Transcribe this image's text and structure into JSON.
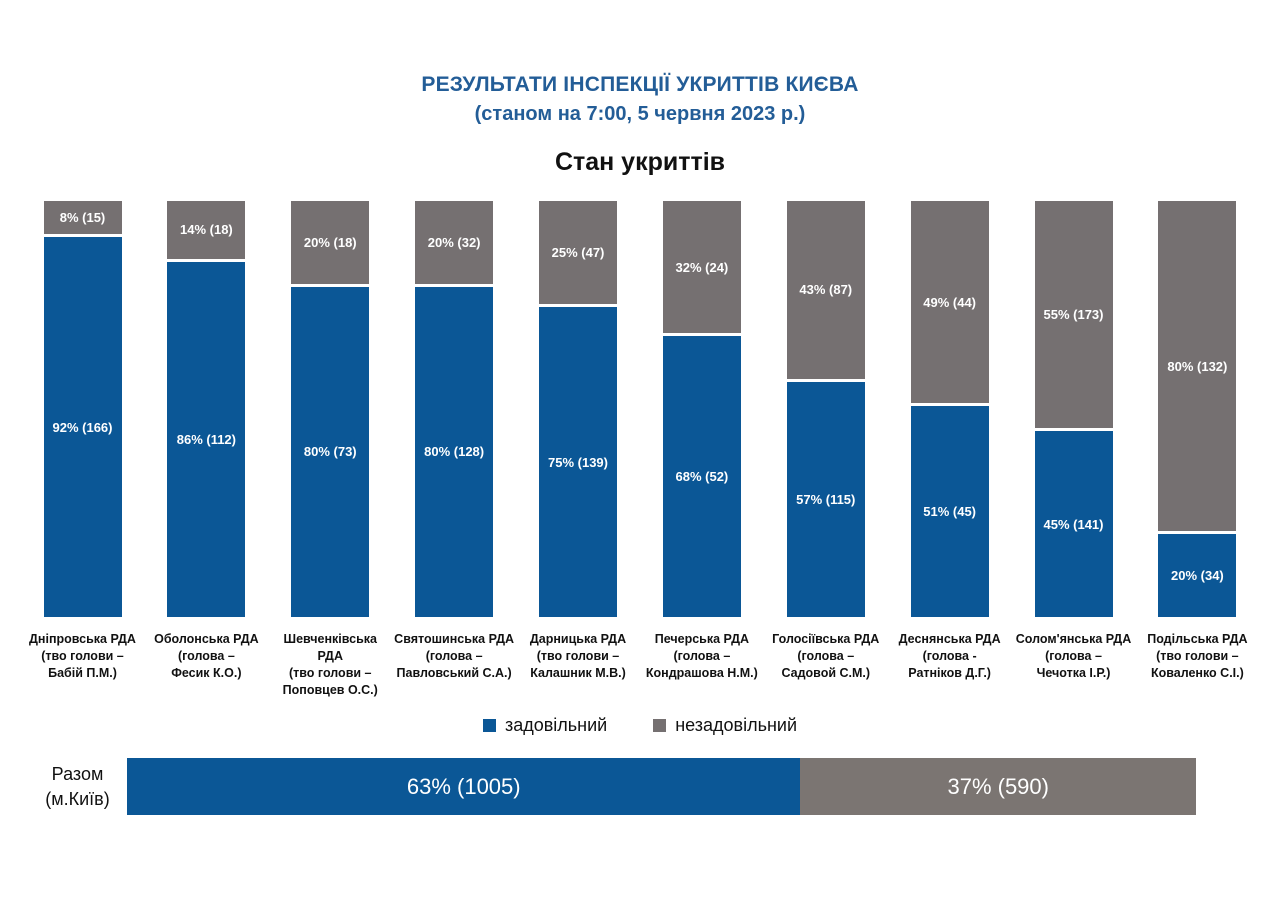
{
  "header": {
    "title": "РЕЗУЛЬТАТИ ІНСПЕКЦІЇ УКРИТТІВ КИЄВА",
    "subtitle": "(станом на 7:00, 5 червня 2023 р.)"
  },
  "chart_title": "Стан укриттів",
  "colors": {
    "satisfactory_blue": "#0b5796",
    "unsatisfactory_gray": "#757071",
    "title_blue": "#235d97",
    "total_gray": "#7b7572"
  },
  "legend": {
    "satisfactory": "задовільний",
    "unsatisfactory": "незадовільний"
  },
  "chart_data": {
    "type": "bar",
    "stacked": true,
    "orientation": "vertical",
    "title": "Стан укриттів",
    "ylim": [
      0,
      100
    ],
    "grid": false,
    "legend_position": "bottom",
    "categories": [
      "Дніпровська РДА (тво голови – Бабій П.М.)",
      "Оболонська РДА (голова – Фесик К.О.)",
      "Шевченківська РДА (тво голови – Поповцев О.С.)",
      "Святошинська РДА (голова – Павловський С.А.)",
      "Дарницька РДА (тво голови – Калашник М.В.)",
      "Печерська РДА (голова – Кондрашова Н.М.)",
      "Голосіївська РДА (голова – Садовой С.М.)",
      "Деснянська РДА (голова - Ратніков Д.Г.)",
      "Солом'янська РДА (голова – Чечотка І.Р.)",
      "Подільська РДА (тво голови – Коваленко С.І.)"
    ],
    "series": [
      {
        "name": "задовільний",
        "color": "#0b5796",
        "values_pct": [
          92,
          86,
          80,
          80,
          75,
          68,
          57,
          51,
          45,
          20
        ],
        "counts": [
          166,
          112,
          73,
          128,
          139,
          52,
          115,
          45,
          141,
          34
        ]
      },
      {
        "name": "незадовільний",
        "color": "#757071",
        "values_pct": [
          8,
          14,
          20,
          20,
          25,
          32,
          43,
          49,
          55,
          80
        ],
        "counts": [
          15,
          18,
          18,
          32,
          47,
          24,
          87,
          44,
          173,
          132
        ]
      }
    ],
    "total": {
      "category": "Разом (м.Київ)",
      "satisfactory_pct": 63,
      "satisfactory_count": 1005,
      "unsatisfactory_pct": 37,
      "unsatisfactory_count": 590
    }
  },
  "bars": [
    {
      "line1": "Дніпровська РДА",
      "line2": "(тво голови –",
      "line3": "Бабій П.М.)",
      "unsat_pct": 8,
      "unsat_label": "8% (15)",
      "sat_pct": 92,
      "sat_label": "92% (166)"
    },
    {
      "line1": "Оболонська РДА",
      "line2": "(голова –",
      "line3": "Фесик К.О.)",
      "unsat_pct": 14,
      "unsat_label": "14% (18)",
      "sat_pct": 86,
      "sat_label": "86% (112)"
    },
    {
      "line1": "Шевченківська РДА",
      "line2": "(тво голови –",
      "line3": "Поповцев О.С.)",
      "unsat_pct": 20,
      "unsat_label": "20% (18)",
      "sat_pct": 80,
      "sat_label": "80% (73)"
    },
    {
      "line1": "Святошинська РДА",
      "line2": "(голова –",
      "line3": "Павловський С.А.)",
      "unsat_pct": 20,
      "unsat_label": "20% (32)",
      "sat_pct": 80,
      "sat_label": "80% (128)"
    },
    {
      "line1": "Дарницька РДА",
      "line2": "(тво голови –",
      "line3": "Калашник М.В.)",
      "unsat_pct": 25,
      "unsat_label": "25% (47)",
      "sat_pct": 75,
      "sat_label": "75% (139)"
    },
    {
      "line1": "Печерська РДА",
      "line2": "(голова –",
      "line3": "Кондрашова Н.М.)",
      "unsat_pct": 32,
      "unsat_label": "32% (24)",
      "sat_pct": 68,
      "sat_label": "68% (52)"
    },
    {
      "line1": "Голосіївська РДА",
      "line2": "(голова –",
      "line3": "Садовой С.М.)",
      "unsat_pct": 43,
      "unsat_label": "43% (87)",
      "sat_pct": 57,
      "sat_label": "57% (115)"
    },
    {
      "line1": "Деснянська РДА",
      "line2": "(голова -",
      "line3": "Ратніков Д.Г.)",
      "unsat_pct": 49,
      "unsat_label": "49% (44)",
      "sat_pct": 51,
      "sat_label": "51% (45)"
    },
    {
      "line1": "Солом'янська РДА",
      "line2": "(голова –",
      "line3": "Чечотка І.Р.)",
      "unsat_pct": 55,
      "unsat_label": "55% (173)",
      "sat_pct": 45,
      "sat_label": "45% (141)"
    },
    {
      "line1": "Подільська РДА",
      "line2": "(тво голови –",
      "line3": "Коваленко С.І.)",
      "unsat_pct": 80,
      "unsat_label": "80% (132)",
      "sat_pct": 20,
      "sat_label": "20% (34)"
    }
  ],
  "total": {
    "label_line1": "Разом",
    "label_line2": "(м.Київ)",
    "sat_pct": 63,
    "sat_label": "63% (1005)",
    "unsat_pct": 37,
    "unsat_label": "37% (590)"
  }
}
